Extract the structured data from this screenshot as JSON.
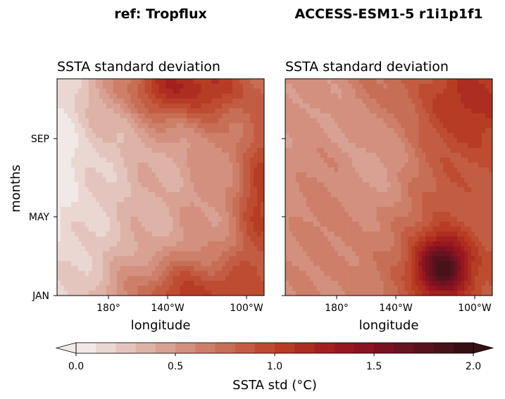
{
  "chart_data": [
    {
      "type": "heatmap",
      "suptitle": "ref: Tropflux",
      "title": "SSTA standard deviation",
      "xlabel": "longitude",
      "ylabel": "months",
      "x_ticks": [
        "180°",
        "140°W",
        "100°W"
      ],
      "y_ticks": [
        "SEP",
        "MAY",
        "JAN"
      ],
      "field_description": "low std (~0.1-0.5) in west, peaks ~1.5 in Oct-Nov near 140W and ~1.3 in Jan near 120W",
      "peaks": [
        {
          "lon": "140W",
          "month": "NOV",
          "value": 1.5
        },
        {
          "lon": "120W",
          "month": "JAN",
          "value": 1.3
        },
        {
          "lon": "95W",
          "month": "JUL",
          "value": 1.1
        }
      ]
    },
    {
      "type": "heatmap",
      "suptitle": "ACCESS-ESM1-5 r1i1p1f1",
      "title": "SSTA standard deviation",
      "xlabel": "longitude",
      "ylabel": "",
      "x_ticks": [
        "180°",
        "140°W",
        "100°W"
      ],
      "y_ticks": [
        "SEP",
        "MAY",
        "JAN"
      ],
      "field_description": "broadly ~0.7-1.0 with a strong peak ~1.9 in Feb-Mar near 110W",
      "peaks": [
        {
          "lon": "110W",
          "month": "FEB",
          "value": 1.9
        },
        {
          "lon": "100W",
          "month": "NOV",
          "value": 1.0
        }
      ]
    }
  ],
  "colorbar": {
    "label": "SSTA std ($^\\circ$C)",
    "label_display": "SSTA std (°C)",
    "ticks": [
      "0.0",
      "0.5",
      "1.0",
      "1.5",
      "2.0"
    ],
    "min": 0.0,
    "max": 2.0,
    "levels": 20,
    "colors": [
      "#f1e9e7",
      "#ead7d2",
      "#e4c5bd",
      "#ddb3a8",
      "#d8a193",
      "#d3907e",
      "#cd7f6a",
      "#c76e56",
      "#c25d43",
      "#bd4c31",
      "#b73c24",
      "#ae2d21",
      "#a3201f",
      "#961720",
      "#881321",
      "#781221",
      "#681320",
      "#57131d",
      "#471219",
      "#370f13"
    ]
  }
}
